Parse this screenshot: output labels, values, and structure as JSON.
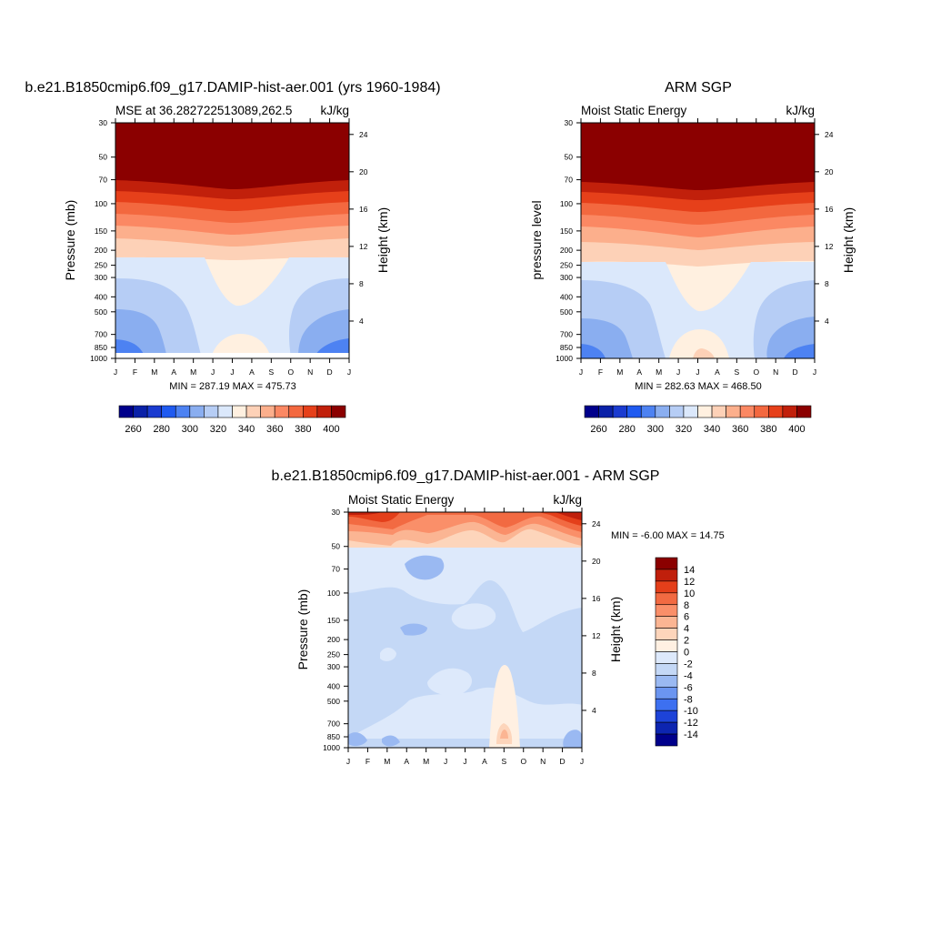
{
  "colors": {
    "mse_levels": [
      "#00008b",
      "#0a21a8",
      "#1a3bd0",
      "#1f5af0",
      "#4d82f2",
      "#8aaef0",
      "#b6cdf5",
      "#dbe8fb",
      "#fff0e0",
      "#fdd1b7",
      "#fcaf8c",
      "#fb8863",
      "#f3683f",
      "#e6401a",
      "#c1200b",
      "#8b0000"
    ],
    "diff_levels": [
      "#00008b",
      "#0d25b0",
      "#1d43d8",
      "#3d70f0",
      "#6b95f0",
      "#9ab9f2",
      "#c4d8f6",
      "#dde9fb",
      "#fff0e2",
      "#fdd5bb",
      "#fbb593",
      "#fa8f69",
      "#f26a42",
      "#e43f1a",
      "#c01f0b",
      "#8b0000"
    ]
  },
  "figure_titles": {
    "left": "b.e21.B1850cmip6.f09_g17.DAMIP-hist-aer.001 (yrs 1960-1984)",
    "right": "ARM SGP",
    "bottom": "b.e21.B1850cmip6.f09_g17.DAMIP-hist-aer.001 - ARM SGP"
  },
  "chart_data": [
    {
      "type": "heatmap",
      "left_title": "MSE at 36.282722513089,262.5",
      "right_title": "kJ/kg",
      "ylabel": "Pressure (mb)",
      "y2label": "Height (km)",
      "x": [
        "J",
        "F",
        "M",
        "A",
        "M",
        "J",
        "J",
        "A",
        "S",
        "O",
        "N",
        "D",
        "J"
      ],
      "pressure_ticks": [
        "30",
        "50",
        "70",
        "100",
        "150",
        "200",
        "250",
        "300",
        "400",
        "500",
        "700",
        "850",
        "1000"
      ],
      "height_ticks": [
        "24",
        "20",
        "16",
        "12",
        "8",
        "4"
      ],
      "stats": "MIN = 287.19 MAX = 475.73",
      "colorbar_labels": [
        "260",
        "280",
        "300",
        "320",
        "340",
        "360",
        "380",
        "400"
      ]
    },
    {
      "type": "heatmap",
      "left_title": "Moist Static Energy",
      "right_title": "kJ/kg",
      "ylabel": "pressure level",
      "y2label": "Height (km)",
      "x": [
        "J",
        "F",
        "M",
        "A",
        "M",
        "J",
        "J",
        "A",
        "S",
        "O",
        "N",
        "D",
        "J"
      ],
      "pressure_ticks": [
        "30",
        "50",
        "70",
        "100",
        "150",
        "200",
        "250",
        "300",
        "400",
        "500",
        "700",
        "850",
        "1000"
      ],
      "height_ticks": [
        "24",
        "20",
        "16",
        "12",
        "8",
        "4"
      ],
      "stats": "MIN = 282.63 MAX = 468.50",
      "colorbar_labels": [
        "260",
        "280",
        "300",
        "320",
        "340",
        "360",
        "380",
        "400"
      ]
    },
    {
      "type": "heatmap",
      "left_title": "Moist Static Energy",
      "right_title": "kJ/kg",
      "ylabel": "Pressure (mb)",
      "y2label": "Height (km)",
      "x": [
        "J",
        "F",
        "M",
        "A",
        "M",
        "J",
        "J",
        "A",
        "S",
        "O",
        "N",
        "D",
        "J"
      ],
      "pressure_ticks": [
        "30",
        "50",
        "70",
        "100",
        "150",
        "200",
        "250",
        "300",
        "400",
        "500",
        "700",
        "850",
        "1000"
      ],
      "height_ticks": [
        "24",
        "20",
        "16",
        "12",
        "8",
        "4"
      ],
      "stats": "MIN =  -6.00 MAX =  14.75",
      "colorbar_labels": [
        "14",
        "12",
        "10",
        "8",
        "6",
        "4",
        "2",
        "0",
        "-2",
        "-4",
        "-6",
        "-8",
        "-10",
        "-12",
        "-14"
      ]
    }
  ]
}
